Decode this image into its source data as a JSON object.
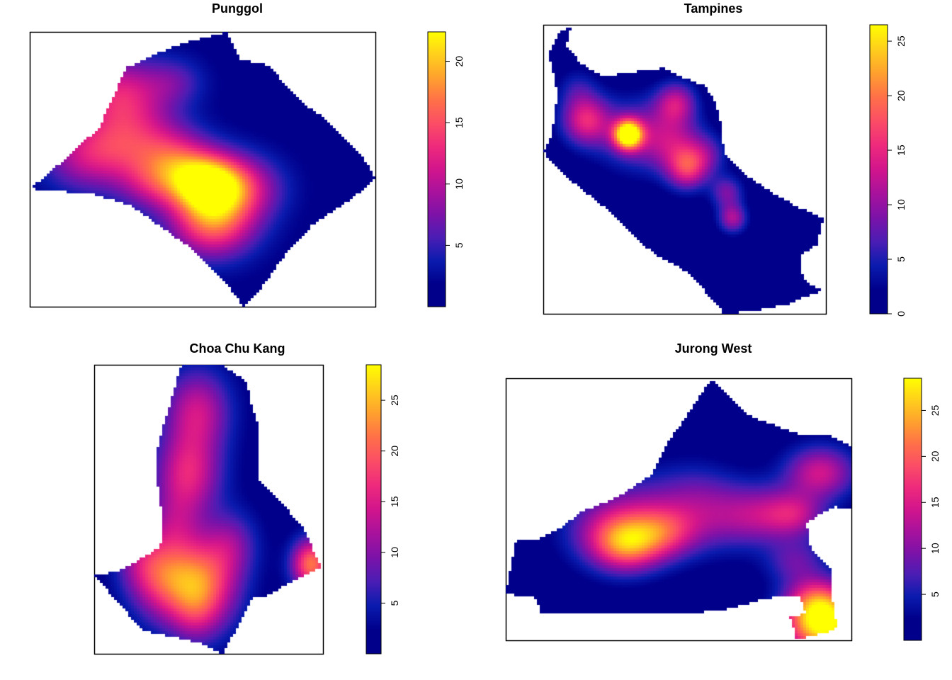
{
  "colors": {
    "ramp": [
      "#00008B",
      "#00008B",
      "#0A1BAE",
      "#4A1DB4",
      "#7C12A8",
      "#A8129C",
      "#D2158C",
      "#EE2A7C",
      "#FB4D66",
      "#FF7048",
      "#FFA12E",
      "#FFCF1C",
      "#FFFF00"
    ],
    "frame": "#000000",
    "background": "#ffffff"
  },
  "chart_data": [
    {
      "type": "heatmap",
      "title": "Punggol",
      "zlim": [
        0,
        22.4
      ],
      "colorbar_ticks": [
        5,
        10,
        15,
        20
      ],
      "base": 1.5,
      "outline": [
        [
          0.0,
          0.43
        ],
        [
          0.06,
          0.49
        ],
        [
          0.2,
          0.65
        ],
        [
          0.28,
          0.87
        ],
        [
          0.42,
          0.95
        ],
        [
          0.57,
          1.0
        ],
        [
          0.61,
          0.9
        ],
        [
          0.69,
          0.88
        ],
        [
          0.78,
          0.75
        ],
        [
          0.86,
          0.68
        ],
        [
          0.96,
          0.55
        ],
        [
          1.0,
          0.47
        ],
        [
          0.95,
          0.41
        ],
        [
          0.82,
          0.3
        ],
        [
          0.74,
          0.19
        ],
        [
          0.66,
          0.05
        ],
        [
          0.62,
          0.0
        ],
        [
          0.57,
          0.08
        ],
        [
          0.48,
          0.2
        ],
        [
          0.39,
          0.28
        ],
        [
          0.29,
          0.37
        ],
        [
          0.18,
          0.41
        ],
        [
          0.08,
          0.42
        ]
      ],
      "hotspots": [
        {
          "x": 0.51,
          "y": 0.45,
          "value": 20.9,
          "sigma": 0.075
        },
        {
          "x": 0.53,
          "y": 0.3,
          "value": 13.5,
          "sigma": 0.085
        },
        {
          "x": 0.62,
          "y": 0.43,
          "value": 8.0,
          "sigma": 0.08
        },
        {
          "x": 0.3,
          "y": 0.6,
          "value": 9.0,
          "sigma": 0.1
        },
        {
          "x": 0.16,
          "y": 0.55,
          "value": 7.5,
          "sigma": 0.09
        },
        {
          "x": 0.26,
          "y": 0.78,
          "value": 9.5,
          "sigma": 0.09
        },
        {
          "x": 0.36,
          "y": 0.45,
          "value": 7.0,
          "sigma": 0.07
        },
        {
          "x": 0.42,
          "y": 0.55,
          "value": 6.0,
          "sigma": 0.07
        },
        {
          "x": 0.42,
          "y": 0.82,
          "value": 4.0,
          "sigma": 0.06
        }
      ]
    },
    {
      "type": "heatmap",
      "title": "Tampines",
      "zlim": [
        0,
        26.5
      ],
      "colorbar_ticks": [
        0,
        5,
        10,
        15,
        20,
        25
      ],
      "base": 0.5,
      "outline": [
        [
          0.0,
          0.56
        ],
        [
          0.05,
          0.5
        ],
        [
          0.15,
          0.42
        ],
        [
          0.24,
          0.35
        ],
        [
          0.32,
          0.27
        ],
        [
          0.4,
          0.2
        ],
        [
          0.5,
          0.15
        ],
        [
          0.57,
          0.08
        ],
        [
          0.64,
          0.0
        ],
        [
          0.74,
          0.01
        ],
        [
          0.86,
          0.03
        ],
        [
          0.93,
          0.06
        ],
        [
          0.96,
          0.07
        ],
        [
          0.99,
          0.08
        ],
        [
          0.95,
          0.1
        ],
        [
          0.92,
          0.12
        ],
        [
          0.91,
          0.2
        ],
        [
          0.97,
          0.24
        ],
        [
          0.99,
          0.33
        ],
        [
          0.9,
          0.37
        ],
        [
          0.81,
          0.42
        ],
        [
          0.73,
          0.47
        ],
        [
          0.64,
          0.55
        ],
        [
          0.63,
          0.65
        ],
        [
          0.61,
          0.73
        ],
        [
          0.57,
          0.79
        ],
        [
          0.49,
          0.82
        ],
        [
          0.43,
          0.85
        ],
        [
          0.34,
          0.84
        ],
        [
          0.21,
          0.82
        ],
        [
          0.13,
          0.87
        ],
        [
          0.08,
          0.93
        ],
        [
          0.1,
          0.99
        ],
        [
          0.06,
          0.98
        ],
        [
          0.02,
          0.9
        ],
        [
          0.05,
          0.76
        ],
        [
          0.03,
          0.62
        ]
      ],
      "hotspots": [
        {
          "x": 0.3,
          "y": 0.62,
          "value": 26.5,
          "sigma": 0.035
        },
        {
          "x": 0.3,
          "y": 0.62,
          "value": 6.0,
          "sigma": 0.09
        },
        {
          "x": 0.15,
          "y": 0.67,
          "value": 13.5,
          "sigma": 0.06
        },
        {
          "x": 0.47,
          "y": 0.73,
          "value": 11.0,
          "sigma": 0.05
        },
        {
          "x": 0.48,
          "y": 0.58,
          "value": 7.5,
          "sigma": 0.07
        },
        {
          "x": 0.51,
          "y": 0.5,
          "value": 12.0,
          "sigma": 0.05
        },
        {
          "x": 0.67,
          "y": 0.33,
          "value": 10.5,
          "sigma": 0.035
        },
        {
          "x": 0.65,
          "y": 0.42,
          "value": 8.0,
          "sigma": 0.04
        },
        {
          "x": 0.4,
          "y": 0.62,
          "value": 5.0,
          "sigma": 0.08
        },
        {
          "x": 0.58,
          "y": 0.55,
          "value": 5.5,
          "sigma": 0.05
        },
        {
          "x": 0.12,
          "y": 0.78,
          "value": 4.0,
          "sigma": 0.05
        }
      ]
    },
    {
      "type": "heatmap",
      "title": "Choa Chu Kang",
      "zlim": [
        0,
        28.5
      ],
      "colorbar_ticks": [
        5,
        10,
        15,
        20,
        25
      ],
      "base": 1.5,
      "outline": [
        [
          0.0,
          0.27
        ],
        [
          0.08,
          0.2
        ],
        [
          0.21,
          0.08
        ],
        [
          0.33,
          0.06
        ],
        [
          0.45,
          0.04
        ],
        [
          0.56,
          0.0
        ],
        [
          0.62,
          0.08
        ],
        [
          0.69,
          0.19
        ],
        [
          0.75,
          0.2
        ],
        [
          0.99,
          0.3
        ],
        [
          0.92,
          0.43
        ],
        [
          0.8,
          0.54
        ],
        [
          0.72,
          0.6
        ],
        [
          0.72,
          0.79
        ],
        [
          0.68,
          0.88
        ],
        [
          0.67,
          0.94
        ],
        [
          0.56,
          1.0
        ],
        [
          0.38,
          1.0
        ],
        [
          0.35,
          0.91
        ],
        [
          0.3,
          0.79
        ],
        [
          0.27,
          0.68
        ],
        [
          0.28,
          0.56
        ],
        [
          0.3,
          0.47
        ],
        [
          0.29,
          0.37
        ],
        [
          0.12,
          0.29
        ]
      ],
      "hotspots": [
        {
          "x": 0.47,
          "y": 0.24,
          "value": 18.5,
          "sigma": 0.11
        },
        {
          "x": 0.3,
          "y": 0.26,
          "value": 13.0,
          "sigma": 0.1
        },
        {
          "x": 0.44,
          "y": 0.13,
          "value": 4.0,
          "sigma": 0.07
        },
        {
          "x": 0.41,
          "y": 0.62,
          "value": 13.5,
          "sigma": 0.1
        },
        {
          "x": 0.45,
          "y": 0.84,
          "value": 12.0,
          "sigma": 0.1
        },
        {
          "x": 0.95,
          "y": 0.31,
          "value": 20.0,
          "sigma": 0.06
        },
        {
          "x": 0.2,
          "y": 0.33,
          "value": 6.0,
          "sigma": 0.08
        },
        {
          "x": 0.6,
          "y": 0.38,
          "value": 7.0,
          "sigma": 0.08
        },
        {
          "x": 0.35,
          "y": 0.45,
          "value": 6.0,
          "sigma": 0.08
        }
      ]
    },
    {
      "type": "heatmap",
      "title": "Jurong West",
      "zlim": [
        0,
        28.5
      ],
      "colorbar_ticks": [
        5,
        10,
        15,
        20,
        25
      ],
      "base": 1.0,
      "outline": [
        [
          0.0,
          0.18
        ],
        [
          0.03,
          0.38
        ],
        [
          0.1,
          0.39
        ],
        [
          0.15,
          0.42
        ],
        [
          0.22,
          0.49
        ],
        [
          0.33,
          0.55
        ],
        [
          0.42,
          0.63
        ],
        [
          0.47,
          0.76
        ],
        [
          0.52,
          0.85
        ],
        [
          0.58,
          0.97
        ],
        [
          0.6,
          0.99
        ],
        [
          0.63,
          0.95
        ],
        [
          0.7,
          0.86
        ],
        [
          0.78,
          0.82
        ],
        [
          0.86,
          0.78
        ],
        [
          0.94,
          0.78
        ],
        [
          1.0,
          0.74
        ],
        [
          1.0,
          0.5
        ],
        [
          0.95,
          0.51
        ],
        [
          0.87,
          0.45
        ],
        [
          0.88,
          0.36
        ],
        [
          0.91,
          0.31
        ],
        [
          0.94,
          0.27
        ],
        [
          0.94,
          0.19
        ],
        [
          0.96,
          0.05
        ],
        [
          0.93,
          0.03
        ],
        [
          0.84,
          0.0
        ],
        [
          0.83,
          0.06
        ],
        [
          0.82,
          0.09
        ],
        [
          0.87,
          0.1
        ],
        [
          0.85,
          0.17
        ],
        [
          0.75,
          0.16
        ],
        [
          0.65,
          0.12
        ],
        [
          0.52,
          0.1
        ],
        [
          0.38,
          0.1
        ],
        [
          0.24,
          0.1
        ],
        [
          0.1,
          0.1
        ],
        [
          0.09,
          0.16
        ],
        [
          0.04,
          0.17
        ]
      ],
      "hotspots": [
        {
          "x": 0.35,
          "y": 0.36,
          "value": 15.0,
          "sigma": 0.07
        },
        {
          "x": 0.46,
          "y": 0.41,
          "value": 11.0,
          "sigma": 0.07
        },
        {
          "x": 0.3,
          "y": 0.42,
          "value": 9.0,
          "sigma": 0.09
        },
        {
          "x": 0.6,
          "y": 0.47,
          "value": 7.0,
          "sigma": 0.09
        },
        {
          "x": 0.55,
          "y": 0.58,
          "value": 3.5,
          "sigma": 0.08
        },
        {
          "x": 0.74,
          "y": 0.48,
          "value": 9.0,
          "sigma": 0.08
        },
        {
          "x": 0.84,
          "y": 0.48,
          "value": 9.5,
          "sigma": 0.06
        },
        {
          "x": 0.91,
          "y": 0.64,
          "value": 13.0,
          "sigma": 0.07
        },
        {
          "x": 0.84,
          "y": 0.3,
          "value": 7.0,
          "sigma": 0.06
        },
        {
          "x": 0.92,
          "y": 0.06,
          "value": 28.0,
          "sigma": 0.08
        },
        {
          "x": 0.9,
          "y": 0.16,
          "value": 11.0,
          "sigma": 0.06
        },
        {
          "x": 0.4,
          "y": 0.5,
          "value": 6.0,
          "sigma": 0.1
        }
      ]
    }
  ]
}
